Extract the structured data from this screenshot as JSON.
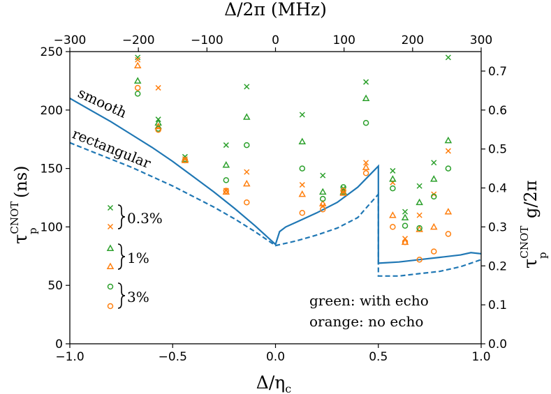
{
  "chart_data": {
    "type": "scatter",
    "xlabel_bottom": "Δ/η",
    "xlabel_bottom_sub": "c",
    "xlabel_top": "Δ/2π (MHz)",
    "ylabel_left": "τ",
    "ylabel_left_sup": "CNOT",
    "ylabel_left_sub": "p",
    "ylabel_left_unit": "(ns)",
    "ylabel_right": "τ",
    "ylabel_right_sup": "CNOT",
    "ylabel_right_sub": "p",
    "ylabel_right_tail": "g/2π",
    "xlim_bottom": [
      -1.0,
      1.0
    ],
    "xlim_top": [
      -300,
      300
    ],
    "ylim_left": [
      0,
      250
    ],
    "ylim_right": [
      0.0,
      0.75
    ],
    "xticks_bottom": [
      "−1.0",
      "−0.5",
      "0.0",
      "0.5",
      "1.0"
    ],
    "xticks_top": [
      "−300",
      "−200",
      "−100",
      "0",
      "100",
      "200",
      "300"
    ],
    "yticks_left": [
      "0",
      "50",
      "100",
      "150",
      "200",
      "250"
    ],
    "yticks_right": [
      "0.0",
      "0.1",
      "0.2",
      "0.3",
      "0.4",
      "0.5",
      "0.6",
      "0.7"
    ],
    "colors": {
      "line": "#1f77b4",
      "green": "#2ca02c",
      "orange": "#ff7f0e"
    },
    "curves": [
      {
        "name": "smooth",
        "style": "solid",
        "points": [
          [
            -1.0,
            210
          ],
          [
            -0.9,
            200
          ],
          [
            -0.8,
            190
          ],
          [
            -0.7,
            179
          ],
          [
            -0.6,
            168
          ],
          [
            -0.5,
            156
          ],
          [
            -0.4,
            143
          ],
          [
            -0.3,
            130
          ],
          [
            -0.2,
            116
          ],
          [
            -0.1,
            101
          ],
          [
            -0.05,
            93
          ],
          [
            0.0,
            85
          ],
          [
            0.02,
            96
          ],
          [
            0.05,
            100
          ],
          [
            0.1,
            104
          ],
          [
            0.2,
            112
          ],
          [
            0.3,
            121
          ],
          [
            0.4,
            134
          ],
          [
            0.45,
            143
          ],
          [
            0.5,
            152
          ],
          [
            0.5,
            69
          ],
          [
            0.6,
            70
          ],
          [
            0.7,
            72
          ],
          [
            0.8,
            74
          ],
          [
            0.9,
            76
          ],
          [
            0.95,
            78
          ],
          [
            1.0,
            77
          ]
        ]
      },
      {
        "name": "rectangular",
        "style": "dashed",
        "points": [
          [
            -1.0,
            172
          ],
          [
            -0.9,
            165
          ],
          [
            -0.8,
            158
          ],
          [
            -0.7,
            151
          ],
          [
            -0.6,
            143
          ],
          [
            -0.5,
            135
          ],
          [
            -0.4,
            126
          ],
          [
            -0.3,
            117
          ],
          [
            -0.2,
            107
          ],
          [
            -0.1,
            96
          ],
          [
            0.0,
            84
          ],
          [
            0.1,
            88
          ],
          [
            0.2,
            93
          ],
          [
            0.3,
            99
          ],
          [
            0.4,
            108
          ],
          [
            0.45,
            118
          ],
          [
            0.5,
            128
          ],
          [
            0.5,
            58
          ],
          [
            0.6,
            58
          ],
          [
            0.7,
            60
          ],
          [
            0.8,
            62
          ],
          [
            0.9,
            66
          ],
          [
            0.95,
            69
          ],
          [
            1.0,
            72
          ]
        ]
      }
    ],
    "curve_labels": [
      "smooth",
      "rectangular"
    ],
    "series": [
      {
        "name": "0.3% with echo",
        "marker": "x",
        "color": "green",
        "points": [
          [
            -0.67,
            245
          ],
          [
            -0.57,
            192
          ],
          [
            -0.44,
            160
          ],
          [
            -0.24,
            170
          ],
          [
            -0.14,
            220
          ],
          [
            0.13,
            196
          ],
          [
            0.23,
            144
          ],
          [
            0.33,
            133
          ],
          [
            0.44,
            224
          ],
          [
            0.57,
            148
          ],
          [
            0.63,
            113
          ],
          [
            0.7,
            135
          ],
          [
            0.77,
            155
          ],
          [
            0.84,
            245
          ]
        ]
      },
      {
        "name": "0.3% no echo",
        "marker": "x",
        "color": "orange",
        "points": [
          [
            -0.67,
            243
          ],
          [
            -0.57,
            219
          ],
          [
            -0.44,
            158
          ],
          [
            -0.24,
            131
          ],
          [
            -0.14,
            147
          ],
          [
            0.13,
            136
          ],
          [
            0.23,
            118
          ],
          [
            0.33,
            130
          ],
          [
            0.44,
            155
          ],
          [
            0.57,
            138
          ],
          [
            0.63,
            90
          ],
          [
            0.7,
            110
          ],
          [
            0.77,
            128
          ],
          [
            0.84,
            165
          ]
        ]
      },
      {
        "name": "1% with echo",
        "marker": "triangle",
        "color": "green",
        "points": [
          [
            -0.67,
            225
          ],
          [
            -0.57,
            189
          ],
          [
            -0.44,
            158
          ],
          [
            -0.24,
            153
          ],
          [
            -0.14,
            194
          ],
          [
            0.13,
            173
          ],
          [
            0.23,
            130
          ],
          [
            0.33,
            130
          ],
          [
            0.44,
            210
          ],
          [
            0.57,
            141
          ],
          [
            0.63,
            108
          ],
          [
            0.7,
            121
          ],
          [
            0.77,
            141
          ],
          [
            0.84,
            174
          ]
        ]
      },
      {
        "name": "1% no echo",
        "marker": "triangle",
        "color": "orange",
        "points": [
          [
            -0.67,
            238
          ],
          [
            -0.57,
            186
          ],
          [
            -0.44,
            157
          ],
          [
            -0.24,
            130
          ],
          [
            -0.14,
            137
          ],
          [
            0.13,
            128
          ],
          [
            0.23,
            120
          ],
          [
            0.33,
            129
          ],
          [
            0.44,
            151
          ],
          [
            0.57,
            110
          ],
          [
            0.63,
            87
          ],
          [
            0.7,
            98
          ],
          [
            0.77,
            100
          ],
          [
            0.84,
            113
          ]
        ]
      },
      {
        "name": "3% with echo",
        "marker": "circle",
        "color": "green",
        "points": [
          [
            -0.67,
            214
          ],
          [
            -0.57,
            184
          ],
          [
            -0.44,
            157
          ],
          [
            -0.24,
            140
          ],
          [
            -0.14,
            170
          ],
          [
            0.13,
            150
          ],
          [
            0.23,
            124
          ],
          [
            0.33,
            134
          ],
          [
            0.44,
            189
          ],
          [
            0.57,
            133
          ],
          [
            0.63,
            101
          ],
          [
            0.7,
            99
          ],
          [
            0.77,
            126
          ],
          [
            0.84,
            150
          ]
        ]
      },
      {
        "name": "3% no echo",
        "marker": "circle",
        "color": "orange",
        "points": [
          [
            -0.67,
            219
          ],
          [
            -0.57,
            183
          ],
          [
            -0.44,
            157
          ],
          [
            -0.24,
            131
          ],
          [
            -0.14,
            121
          ],
          [
            0.13,
            112
          ],
          [
            0.23,
            115
          ],
          [
            0.33,
            131
          ],
          [
            0.44,
            146
          ],
          [
            0.57,
            100
          ],
          [
            0.63,
            87
          ],
          [
            0.7,
            72
          ],
          [
            0.77,
            79
          ],
          [
            0.84,
            94
          ]
        ]
      }
    ],
    "legend": [
      {
        "label": "0.3%"
      },
      {
        "label": "1%"
      },
      {
        "label": "3%"
      }
    ],
    "annotations": [
      "green: with echo",
      "orange: no echo"
    ]
  }
}
